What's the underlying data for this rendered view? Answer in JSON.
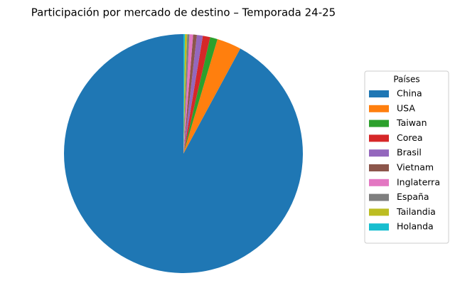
{
  "chart_data": {
    "type": "pie",
    "title": "Participación por mercado de destino – Temporada 24-25",
    "categories": [
      "China",
      "USA",
      "Taiwan",
      "Corea",
      "Brasil",
      "Vietnam",
      "Inglaterra",
      "España",
      "Tailandia",
      "Holanda"
    ],
    "values": [
      92.1,
      3.3,
      1.0,
      1.0,
      0.8,
      0.5,
      0.5,
      0.3,
      0.3,
      0.2
    ],
    "colors": [
      "#1f77b4",
      "#ff7f0e",
      "#2ca02c",
      "#d62728",
      "#9467bd",
      "#8c564b",
      "#e377c2",
      "#7f7f7f",
      "#bcbd22",
      "#17becf"
    ],
    "legend_title": "Países",
    "legend": "right"
  }
}
